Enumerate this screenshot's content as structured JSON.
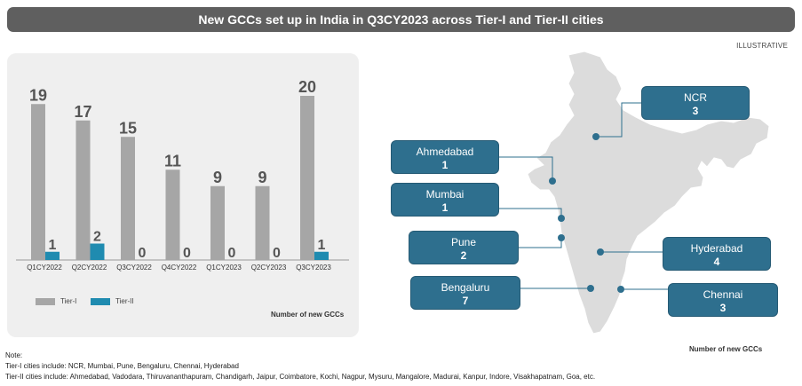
{
  "title": "New GCCs set up in India in Q3CY2023 across Tier-I and Tier-II cities",
  "illustrative_label": "ILLUSTRATIVE",
  "chart_data": {
    "type": "bar",
    "categories": [
      "Q1CY2022",
      "Q2CY2022",
      "Q3CY2022",
      "Q4CY2022",
      "Q1CY2023",
      "Q2CY2023",
      "Q3CY2023"
    ],
    "series": [
      {
        "name": "Tier-I",
        "values": [
          19,
          17,
          15,
          11,
          9,
          9,
          20
        ],
        "color": "#a6a6a6"
      },
      {
        "name": "Tier-II",
        "values": [
          1,
          2,
          0,
          0,
          0,
          0,
          1
        ],
        "color": "#1f8bb0"
      }
    ],
    "title": "",
    "xlabel": "",
    "ylabel": "",
    "ylim": [
      0,
      20
    ],
    "grid": false,
    "legend_position": "bottom-left",
    "unit_label": "Number of new GCCs"
  },
  "map": {
    "unit_label": "Number of new GCCs",
    "cities": [
      {
        "name": "NCR",
        "count": "3"
      },
      {
        "name": "Ahmedabad",
        "count": "1"
      },
      {
        "name": "Mumbai",
        "count": "1"
      },
      {
        "name": "Pune",
        "count": "2"
      },
      {
        "name": "Hyderabad",
        "count": "4"
      },
      {
        "name": "Bengaluru",
        "count": "7"
      },
      {
        "name": "Chennai",
        "count": "3"
      }
    ],
    "box_color": "#2e6f8e",
    "map_color": "#dcdcdc"
  },
  "notes": {
    "heading": "Note:",
    "tier1": "Tier-I cities include: NCR, Mumbai, Pune, Bengaluru, Chennai, Hyderabad",
    "tier2": "Tier-II cities include: Ahmedabad, Vadodara, Thiruvananthapuram, Chandigarh, Jaipur, Coimbatore, Kochi, Nagpur, Mysuru, Mangalore, Madurai, Kanpur, Indore, Visakhapatnam, Goa, etc."
  }
}
